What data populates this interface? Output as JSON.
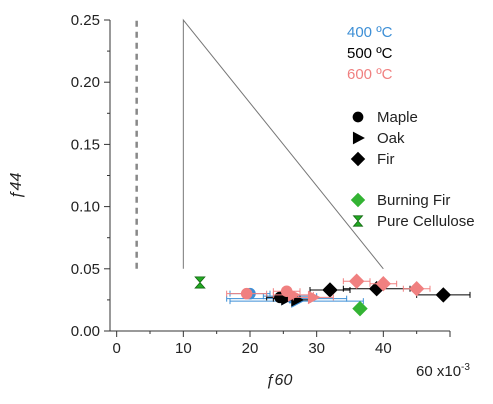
{
  "chart_data": {
    "type": "scatter",
    "xlabel": "ƒ60",
    "ylabel": "ƒ44",
    "x_multiplier_label": "60 x10",
    "x_multiplier_exp": "-3",
    "xlim": [
      -1,
      50
    ],
    "ylim": [
      0,
      0.25
    ],
    "x_ticks": [
      0,
      10,
      20,
      30,
      40,
      50
    ],
    "x_tick_labels": [
      "0",
      "10",
      "20",
      "30",
      "40",
      "50"
    ],
    "y_ticks": [
      0.0,
      0.05,
      0.1,
      0.15,
      0.2,
      0.25
    ],
    "y_tick_labels": [
      "0.00",
      "0.05",
      "0.10",
      "0.15",
      "0.20",
      "0.25"
    ],
    "grid": false,
    "legend_placement": "top-right",
    "colors": {
      "t400": "#3d8fd6",
      "t500": "#000000",
      "t600": "#f08080",
      "burning_fir": "#33b333",
      "cellulose": "#22aa22",
      "line": "#777777"
    },
    "legend": {
      "temperatures": [
        {
          "label": "400 ºC",
          "color": "#3d8fd6"
        },
        {
          "label": "500 ºC",
          "color": "#000000"
        },
        {
          "label": "600 ºC",
          "color": "#f08080"
        }
      ],
      "species": [
        {
          "label": "Maple",
          "marker": "circle"
        },
        {
          "label": "Oak",
          "marker": "triangle-right"
        },
        {
          "label": "Fir",
          "marker": "diamond"
        }
      ],
      "sources": [
        {
          "label": "Burning Fir",
          "marker": "diamond",
          "color": "#33b333"
        },
        {
          "label": "Pure Cellulose",
          "marker": "hourglass",
          "color": "#22aa22"
        }
      ]
    },
    "reference_lines": {
      "dashed_vertical": {
        "x": 3,
        "y": [
          0.05,
          0.25
        ]
      },
      "triangle": [
        [
          10,
          0.05
        ],
        [
          10,
          0.25
        ],
        [
          40,
          0.05
        ]
      ]
    },
    "series": [
      {
        "temperature": "400 ºC",
        "species": "Maple",
        "x": 20,
        "y": 0.03,
        "xerr": 3
      },
      {
        "temperature": "400 ºC",
        "species": "Oak",
        "x": 25.5,
        "y": 0.026,
        "xerr": 9
      },
      {
        "temperature": "400 ºC",
        "species": "Oak",
        "x": 27,
        "y": 0.024,
        "xerr": 10
      },
      {
        "temperature": "400 ºC",
        "species": "Fir",
        "x": 26,
        "y": 0.028,
        "xerr": 4
      },
      {
        "temperature": "500 ºC",
        "species": "Maple",
        "x": 24.5,
        "y": 0.027,
        "xerr": 2
      },
      {
        "temperature": "500 ºC",
        "species": "Oak",
        "x": 25.5,
        "y": 0.026,
        "xerr": 2
      },
      {
        "temperature": "500 ºC",
        "species": "Oak",
        "x": 27,
        "y": 0.025,
        "xerr": 2
      },
      {
        "temperature": "500 ºC",
        "species": "Fir",
        "x": 32,
        "y": 0.033,
        "xerr": 3
      },
      {
        "temperature": "500 ºC",
        "species": "Fir",
        "x": 39,
        "y": 0.034,
        "xerr": 5
      },
      {
        "temperature": "500 ºC",
        "species": "Fir",
        "x": 49,
        "y": 0.029,
        "xerr": 4
      },
      {
        "temperature": "600 ºC",
        "species": "Maple",
        "x": 19.5,
        "y": 0.03,
        "xerr": 3
      },
      {
        "temperature": "600 ºC",
        "species": "Maple",
        "x": 25.5,
        "y": 0.032,
        "xerr": 2
      },
      {
        "temperature": "600 ºC",
        "species": "Oak",
        "x": 26.5,
        "y": 0.029,
        "xerr": 3
      },
      {
        "temperature": "600 ºC",
        "species": "Oak",
        "x": 29.5,
        "y": 0.027,
        "xerr": 3
      },
      {
        "temperature": "600 ºC",
        "species": "Fir",
        "x": 36,
        "y": 0.04,
        "xerr": 2
      },
      {
        "temperature": "600 ºC",
        "species": "Fir",
        "x": 40,
        "y": 0.038,
        "xerr": 2
      },
      {
        "temperature": "600 ºC",
        "species": "Fir",
        "x": 45,
        "y": 0.034,
        "xerr": 2
      },
      {
        "temperature": "Burning Fir",
        "species": "Fir",
        "x": 36.5,
        "y": 0.018,
        "xerr": 0
      },
      {
        "temperature": "Pure Cellulose",
        "species": "Cellulose",
        "x": 12.5,
        "y": 0.039,
        "xerr": 0
      }
    ]
  }
}
